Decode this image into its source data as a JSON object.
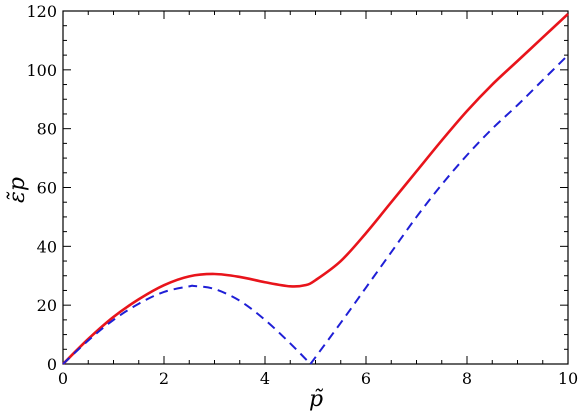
{
  "chart_data": {
    "type": "line",
    "title": "",
    "xlabel": "p̃",
    "ylabel": "ε̃p",
    "xlim": [
      0,
      10
    ],
    "ylim": [
      0,
      120
    ],
    "x_ticks": [
      0,
      2,
      4,
      6,
      8,
      10
    ],
    "y_ticks": [
      0,
      20,
      40,
      60,
      80,
      100,
      120
    ],
    "grid": false,
    "legend": "none",
    "series": [
      {
        "color": "#e8141b",
        "dash": "solid",
        "x": [
          0,
          0.5,
          1.0,
          1.5,
          2.0,
          2.5,
          3.0,
          3.5,
          4.0,
          4.5,
          4.8,
          5.0,
          5.5,
          6.0,
          6.5,
          7.0,
          7.5,
          8.0,
          8.5,
          9.0,
          9.5,
          10.0
        ],
        "y": [
          0,
          8.5,
          16.0,
          22.0,
          26.8,
          29.8,
          30.6,
          29.6,
          27.8,
          26.4,
          26.8,
          28.5,
          35.0,
          44.5,
          55.0,
          65.5,
          76.0,
          86.0,
          95.0,
          103.0,
          111.0,
          119.0
        ]
      },
      {
        "color": "#1f1fd6",
        "dash": "dashed",
        "x": [
          0,
          0.5,
          1.0,
          1.5,
          2.0,
          2.5,
          2.6,
          3.0,
          3.5,
          4.0,
          4.5,
          4.9,
          5.5,
          6.0,
          6.5,
          7.0,
          7.5,
          8.0,
          8.5,
          9.0,
          9.5,
          10.0
        ],
        "y": [
          0,
          8.0,
          15.0,
          20.5,
          24.5,
          26.4,
          26.5,
          25.5,
          21.5,
          15.0,
          7.0,
          0,
          14.0,
          26.0,
          38.0,
          50.0,
          61.0,
          71.0,
          80.0,
          88.0,
          96.5,
          105.0
        ]
      }
    ]
  }
}
